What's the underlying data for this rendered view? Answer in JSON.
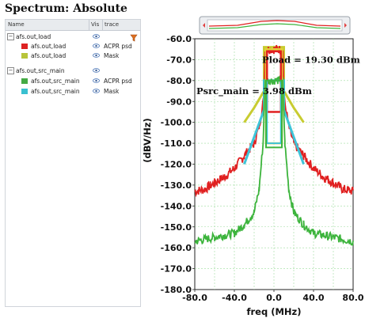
{
  "window": {
    "title": "Spectrum: Absolute"
  },
  "table": {
    "headers": [
      "Name",
      "Vis",
      "trace"
    ],
    "rows": [
      {
        "indent": 0,
        "expander": "⊟",
        "name": "afs.out,load",
        "has_eye": false,
        "trace": ""
      },
      {
        "indent": 1,
        "swatch": "#dd2222",
        "name": "afs.out,load",
        "has_eye": true,
        "trace": "ACPR psd"
      },
      {
        "indent": 1,
        "swatch": "#b8c43a",
        "name": "afs.out,load",
        "has_eye": true,
        "trace": "Mask"
      },
      {
        "indent": 0,
        "expander": "⊟",
        "name": "afs.out,src_main",
        "has_eye": false,
        "trace": ""
      },
      {
        "indent": 1,
        "swatch": "#44aa44",
        "name": "afs.out,src_main",
        "has_eye": true,
        "trace": "ACPR psd"
      },
      {
        "indent": 1,
        "swatch": "#39c0d0",
        "name": "afs.out,src_main",
        "has_eye": true,
        "trace": "Mask"
      }
    ]
  },
  "colors": {
    "load_psd": "#e02020",
    "load_mask": "#c8cc30",
    "src_psd": "#3cb43c",
    "src_mask": "#3ec4d8",
    "red_box": "#e02020",
    "yellow_box": "#e4d03a"
  },
  "chart_data": {
    "type": "line",
    "xlabel": "freq (MHz)",
    "ylabel": "(dBV/Hz)",
    "xlim": [
      -80,
      80
    ],
    "ylim": [
      -180,
      -60
    ],
    "x_ticks": [
      "-80.0",
      "-40.0",
      "0.0",
      "40.0",
      "80.0"
    ],
    "y_ticks": [
      "-60.0",
      "-70.0",
      "-80.0",
      "-90.0",
      "-100.0",
      "-110.0",
      "-120.0",
      "-130.0",
      "-140.0",
      "-150.0",
      "-160.0",
      "-170.0",
      "-180.0"
    ],
    "grid": true,
    "annotations": [
      "Pload = 19.30 dBm",
      "Psrc_main = 3.98 dBm"
    ],
    "series": [
      {
        "x": [
          -80,
          -70,
          -60,
          -50,
          -40,
          -30,
          -20,
          -15,
          -10,
          -9,
          -5,
          0,
          5,
          9,
          10,
          15,
          20,
          30,
          40,
          50,
          60,
          70,
          80
        ],
        "y": [
          -133,
          -132,
          -129,
          -126,
          -122,
          -116,
          -110,
          -102,
          -88,
          -66,
          -65,
          -65,
          -65,
          -66,
          -88,
          -102,
          -110,
          -116,
          -122,
          -126,
          -129,
          -132,
          -133
        ]
      },
      {
        "x": [
          -30,
          -20,
          -10,
          -10,
          10,
          10,
          20,
          30
        ],
        "y": [
          -100,
          -93,
          -85,
          -64,
          -64,
          -85,
          -93,
          -100
        ]
      },
      {
        "x": [
          -80,
          -60,
          -40,
          -30,
          -20,
          -15,
          -11,
          -9,
          0,
          9,
          11,
          15,
          20,
          30,
          40,
          60,
          80
        ],
        "y": [
          -157,
          -155,
          -153,
          -149,
          -143,
          -132,
          -110,
          -80,
          -80,
          -80,
          -110,
          -132,
          -143,
          -149,
          -153,
          -155,
          -157
        ]
      },
      {
        "x": [
          -30,
          -20,
          -10,
          -10,
          10,
          10,
          20,
          30
        ],
        "y": [
          -120,
          -107,
          -94,
          -80,
          -80,
          -94,
          -107,
          -120
        ]
      }
    ]
  }
}
